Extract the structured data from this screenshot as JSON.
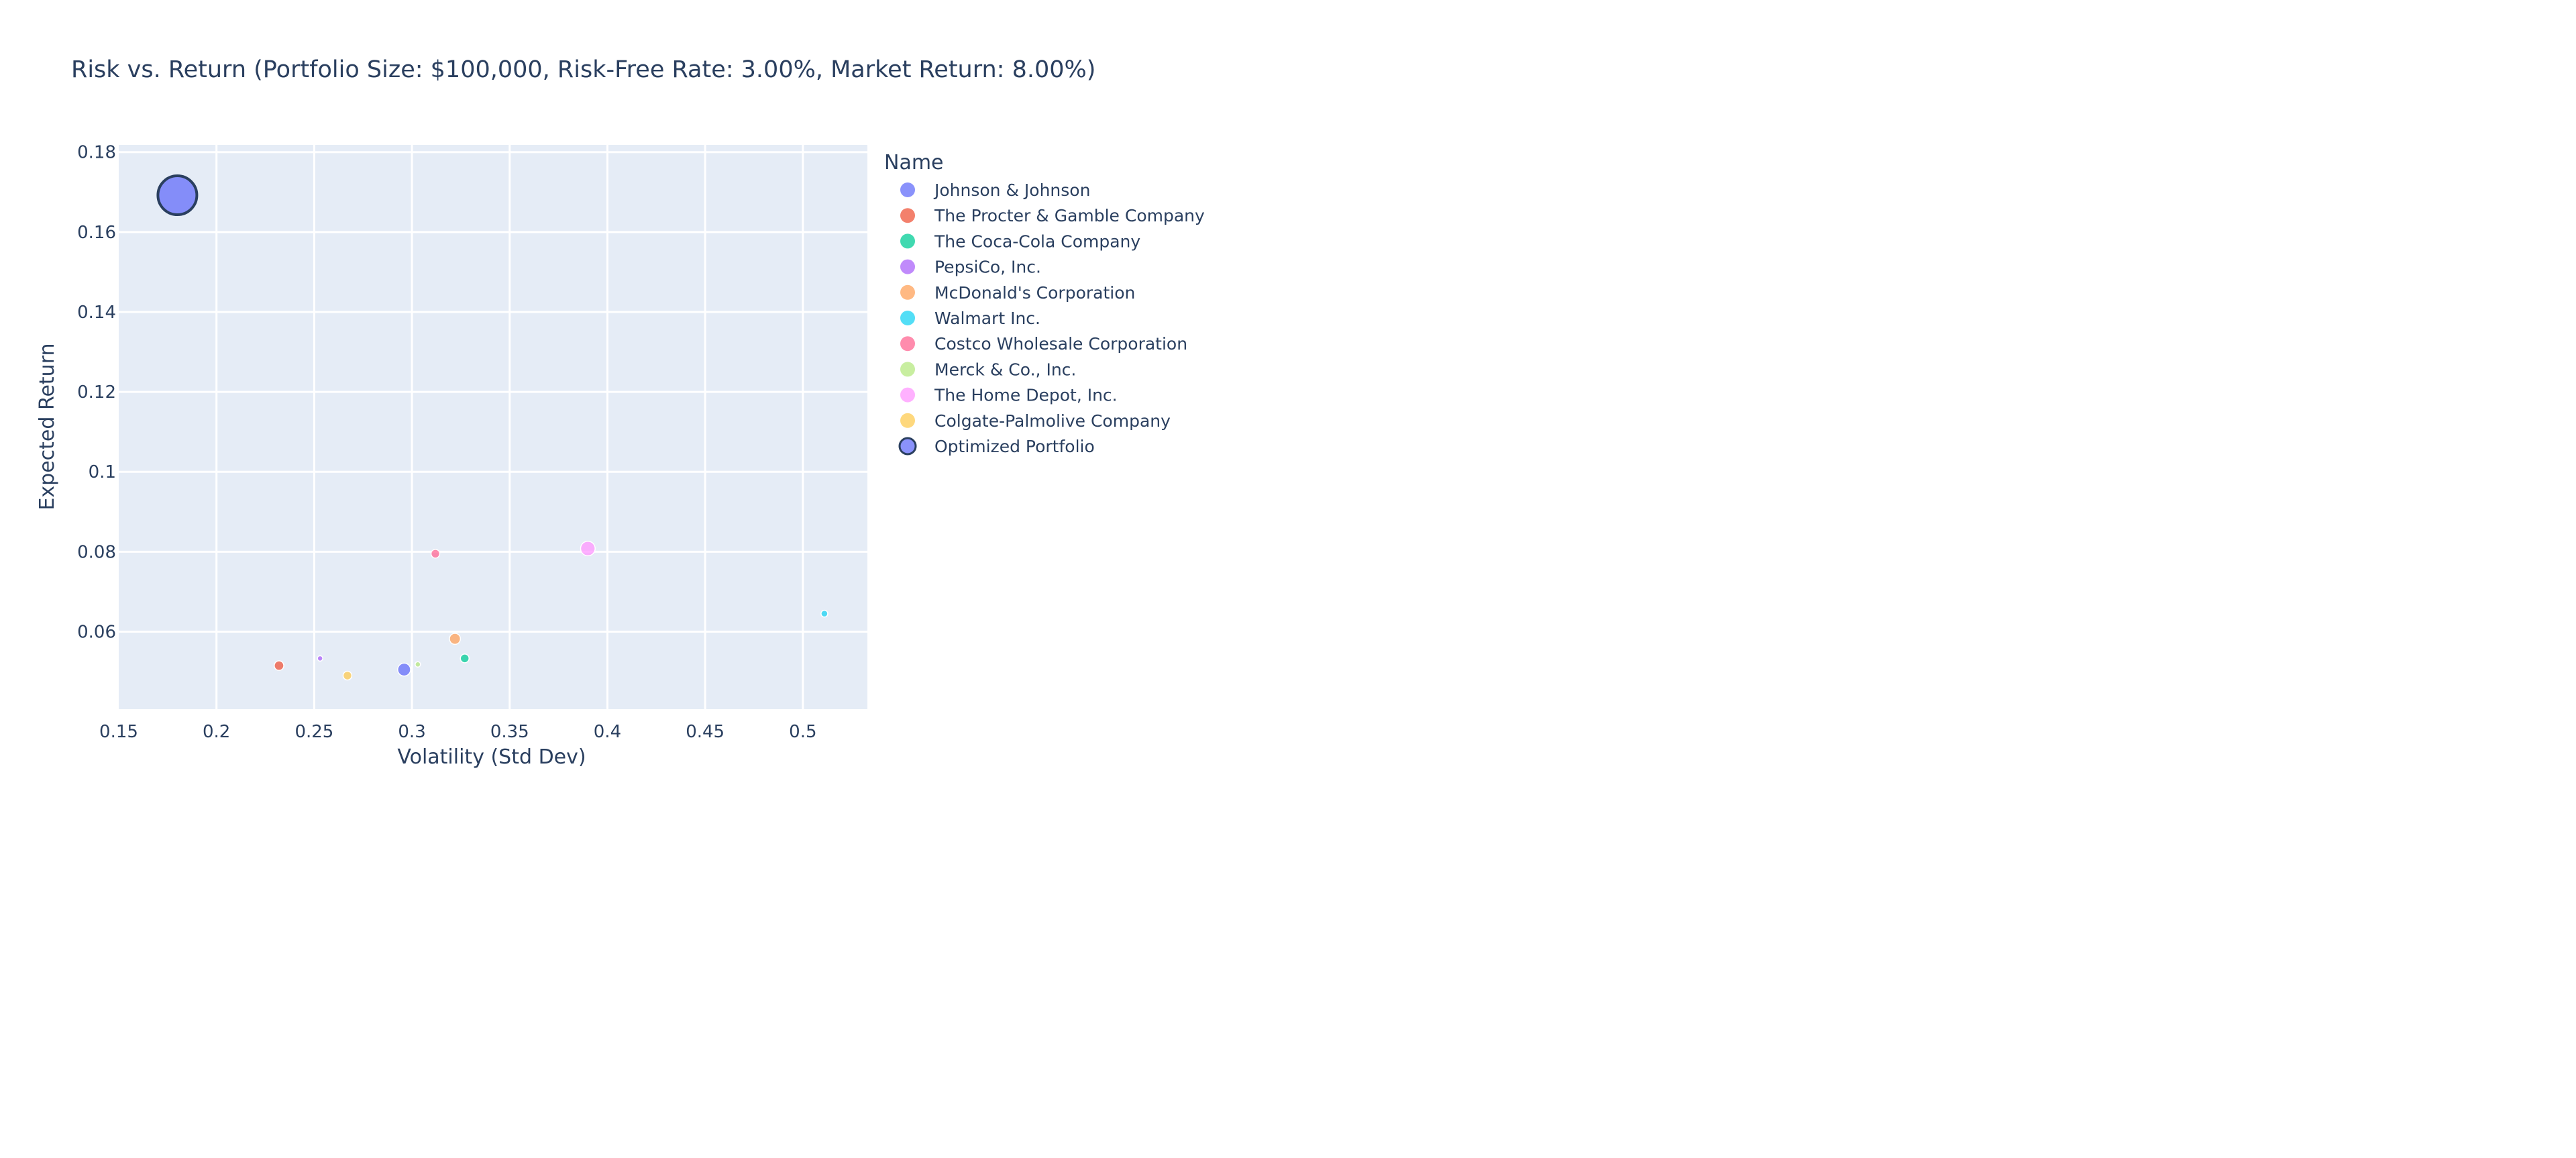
{
  "chart_data": {
    "type": "scatter",
    "title": "Risk vs. Return (Portfolio Size: $100,000, Risk-Free Rate: 3.00%, Market Return: 8.00%)",
    "xlabel": "Volatility (Std Dev)",
    "ylabel": "Expected Return",
    "xlim": [
      0.15,
      0.533
    ],
    "ylim": [
      0.0406,
      0.1818
    ],
    "xticks": [
      0.15,
      0.2,
      0.25,
      0.3,
      0.35,
      0.4,
      0.45,
      0.5
    ],
    "yticks": [
      0.06,
      0.08,
      0.1,
      0.12,
      0.14,
      0.16,
      0.18
    ],
    "grid": true,
    "legend_title": "Name",
    "legend_position": "right",
    "plot_background": "#e5ecf6",
    "series": [
      {
        "name": "Johnson & Johnson",
        "color": "#636efa",
        "x": 0.296,
        "y": 0.0505,
        "weight": 0.11
      },
      {
        "name": "The Procter & Gamble Company",
        "color": "#EF553B",
        "x": 0.232,
        "y": 0.0515,
        "weight": 0.06
      },
      {
        "name": "The Coca-Cola Company",
        "color": "#00cc96",
        "x": 0.327,
        "y": 0.0533,
        "weight": 0.05
      },
      {
        "name": "PepsiCo, Inc.",
        "color": "#ab63fa",
        "x": 0.253,
        "y": 0.0533,
        "weight": 0.01
      },
      {
        "name": "McDonald's Corporation",
        "color": "#FFA15A",
        "x": 0.322,
        "y": 0.0582,
        "weight": 0.08
      },
      {
        "name": "Walmart Inc.",
        "color": "#19d3f3",
        "x": 0.511,
        "y": 0.0645,
        "weight": 0.03
      },
      {
        "name": "Costco Wholesale Corporation",
        "color": "#FF6692",
        "x": 0.312,
        "y": 0.0795,
        "weight": 0.05
      },
      {
        "name": "Merck & Co., Inc.",
        "color": "#B6E880",
        "x": 0.303,
        "y": 0.0518,
        "weight": 0.005
      },
      {
        "name": "The Home Depot, Inc.",
        "color": "#FF97FF",
        "x": 0.39,
        "y": 0.0808,
        "weight": 0.14
      },
      {
        "name": "Colgate-Palmolive Company",
        "color": "#FECB52",
        "x": 0.267,
        "y": 0.049,
        "weight": 0.05
      },
      {
        "name": "Optimized Portfolio",
        "color": "#636efa",
        "x": 0.18,
        "y": 0.1692,
        "weight": 1.0,
        "outlined": true
      }
    ]
  }
}
